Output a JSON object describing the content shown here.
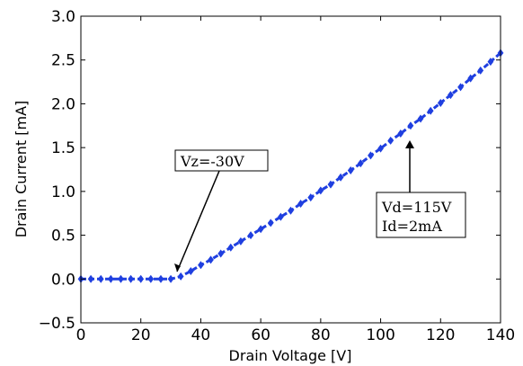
{
  "chart_data": {
    "type": "line",
    "title": "",
    "xlabel": "Drain Voltage [V]",
    "ylabel": "Drain Current [mA]",
    "xlim": [
      0,
      140
    ],
    "ylim": [
      -0.5,
      3.0
    ],
    "xticks": [
      0,
      20,
      40,
      60,
      80,
      100,
      120,
      140
    ],
    "yticks": [
      -0.5,
      0.0,
      0.5,
      1.0,
      1.5,
      2.0,
      2.5,
      3.0
    ],
    "xtick_labels": [
      "0",
      "20",
      "40",
      "60",
      "80",
      "100",
      "120",
      "140"
    ],
    "ytick_labels": [
      "−0.5",
      "0.0",
      "0.5",
      "1.0",
      "1.5",
      "2.0",
      "2.5",
      "3.0"
    ],
    "grid": false,
    "legend": false,
    "series": [
      {
        "color": "#1f3fe0",
        "marker": "diamond",
        "x": [
          0,
          3.33,
          6.67,
          10,
          13.33,
          16.67,
          20,
          23.33,
          26.67,
          30,
          33.33,
          36.67,
          40,
          43.33,
          46.67,
          50,
          53.33,
          56.67,
          60,
          63.33,
          66.67,
          70,
          73.33,
          76.67,
          80,
          83.33,
          86.67,
          90,
          93.33,
          96.67,
          100,
          103.33,
          106.67,
          110,
          113.33,
          116.67,
          120,
          123.33,
          126.67,
          130,
          133.33,
          136.67,
          140
        ],
        "y": [
          0,
          0,
          0,
          0,
          0,
          0,
          0,
          0,
          0,
          0,
          0.03,
          0.09,
          0.16,
          0.22,
          0.29,
          0.36,
          0.43,
          0.5,
          0.57,
          0.64,
          0.71,
          0.78,
          0.86,
          0.93,
          1.01,
          1.08,
          1.16,
          1.24,
          1.32,
          1.41,
          1.49,
          1.58,
          1.66,
          1.75,
          1.83,
          1.92,
          2.01,
          2.1,
          2.19,
          2.29,
          2.38,
          2.48,
          2.58
        ]
      }
    ],
    "annotations": [
      {
        "text": "Vz=-30V",
        "arrow_to": [
          31,
          0.05
        ]
      },
      {
        "lines": [
          "Vd=115V",
          "Id=2mA"
        ],
        "arrow_to": [
          110,
          1.66
        ]
      }
    ]
  }
}
